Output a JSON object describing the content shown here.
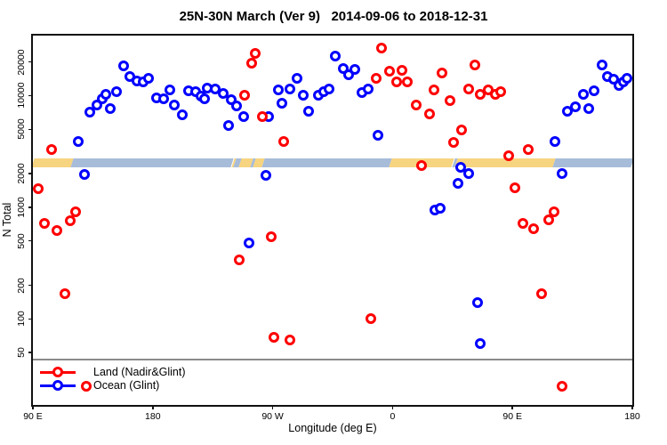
{
  "chart_data": {
    "type": "scatter",
    "title": "25N-30N March (Ver 9)   2014-09-06 to 2018-12-31",
    "xlabel": "Longitude (deg E)",
    "ylabel": "N Total",
    "grid": false,
    "legend_position": "bottom-left",
    "x_axis": {
      "note": "longitude unwrapped eastward from 90E to 540 (=180)",
      "range": [
        90,
        540
      ],
      "ticks": [
        {
          "value": 90,
          "label": "90 E"
        },
        {
          "value": 180,
          "label": "180"
        },
        {
          "value": 270,
          "label": "90 W"
        },
        {
          "value": 360,
          "label": "0"
        },
        {
          "value": 450,
          "label": "90 E"
        },
        {
          "value": 540,
          "label": "180"
        }
      ]
    },
    "y_axis": {
      "scale": "log",
      "range": [
        17,
        34500
      ],
      "ticks": [
        50,
        100,
        200,
        500,
        1000,
        2000,
        5000,
        10000,
        20000
      ]
    },
    "legend": [
      {
        "label": "Land (Nadir&Glint)",
        "color": "#ff0000"
      },
      {
        "label": "Ocean (Glint)",
        "color": "#0000ff"
      }
    ],
    "series": [
      {
        "name": "Land (Nadir&Glint)",
        "color": "#ff0000",
        "points": [
          [
            104,
            3300
          ],
          [
            94,
            1480
          ],
          [
            99,
            720
          ],
          [
            108,
            620
          ],
          [
            118,
            760
          ],
          [
            122,
            910
          ],
          [
            114,
            170
          ],
          [
            130,
            25
          ],
          [
            257,
            24000
          ],
          [
            254,
            19500
          ],
          [
            249,
            10000
          ],
          [
            262,
            6500
          ],
          [
            278,
            3900
          ],
          [
            245,
            340
          ],
          [
            269,
            550
          ],
          [
            271,
            68
          ],
          [
            283,
            65
          ],
          [
            344,
            100
          ],
          [
            352,
            26500
          ],
          [
            348,
            14400
          ],
          [
            358,
            16600
          ],
          [
            363,
            13400
          ],
          [
            367,
            16800
          ],
          [
            371,
            13400
          ],
          [
            378,
            8300
          ],
          [
            388,
            6900
          ],
          [
            382,
            2370
          ],
          [
            391,
            11300
          ],
          [
            397,
            16000
          ],
          [
            403,
            9100
          ],
          [
            406,
            3800
          ],
          [
            412,
            4900
          ],
          [
            417,
            11500
          ],
          [
            422,
            19000
          ],
          [
            426,
            10300
          ],
          [
            432,
            11300
          ],
          [
            437,
            10200
          ],
          [
            441,
            10800
          ],
          [
            447,
            2900
          ],
          [
            452,
            1500
          ],
          [
            458,
            720
          ],
          [
            462,
            3300
          ],
          [
            466,
            640
          ],
          [
            472,
            170
          ],
          [
            477,
            780
          ],
          [
            481,
            910
          ],
          [
            487,
            25
          ]
        ]
      },
      {
        "name": "Ocean (Glint)",
        "color": "#0000ff",
        "points": [
          [
            124,
            3900
          ],
          [
            129,
            1970
          ],
          [
            133,
            7100
          ],
          [
            138,
            8300
          ],
          [
            142,
            9400
          ],
          [
            145,
            10200
          ],
          [
            148,
            7700
          ],
          [
            153,
            10900
          ],
          [
            158,
            18400
          ],
          [
            163,
            14700
          ],
          [
            168,
            13500
          ],
          [
            173,
            13200
          ],
          [
            177,
            14400
          ],
          [
            183,
            9600
          ],
          [
            188,
            9300
          ],
          [
            193,
            11300
          ],
          [
            196,
            8300
          ],
          [
            202,
            6700
          ],
          [
            207,
            11100
          ],
          [
            212,
            10800
          ],
          [
            216,
            9900
          ],
          [
            219,
            9400
          ],
          [
            221,
            11600
          ],
          [
            227,
            11400
          ],
          [
            233,
            10400
          ],
          [
            239,
            9200
          ],
          [
            243,
            8100
          ],
          [
            237,
            5400
          ],
          [
            248,
            6500
          ],
          [
            252,
            480
          ],
          [
            265,
            1930
          ],
          [
            267,
            6500
          ],
          [
            274,
            11300
          ],
          [
            277,
            8600
          ],
          [
            283,
            11500
          ],
          [
            288,
            14200
          ],
          [
            293,
            10000
          ],
          [
            297,
            7300
          ],
          [
            304,
            10100
          ],
          [
            308,
            10800
          ],
          [
            312,
            11500
          ],
          [
            317,
            22500
          ],
          [
            323,
            17600
          ],
          [
            327,
            15300
          ],
          [
            332,
            17300
          ],
          [
            337,
            10600
          ],
          [
            342,
            11500
          ],
          [
            349,
            4400
          ],
          [
            392,
            950
          ],
          [
            396,
            980
          ],
          [
            409,
            1640
          ],
          [
            411,
            2280
          ],
          [
            417,
            2010
          ],
          [
            424,
            140
          ],
          [
            426,
            60
          ],
          [
            482,
            3900
          ],
          [
            487,
            2000
          ],
          [
            491,
            7200
          ],
          [
            497,
            8000
          ],
          [
            503,
            10300
          ],
          [
            507,
            7700
          ],
          [
            511,
            11000
          ],
          [
            517,
            18700
          ],
          [
            521,
            14700
          ],
          [
            526,
            14000
          ],
          [
            530,
            12400
          ],
          [
            533,
            13400
          ],
          [
            536,
            14200
          ]
        ]
      }
    ],
    "surface_band": {
      "description": "land/ocean surface-type strip along longitude",
      "y_range": [
        2280,
        2740
      ],
      "land_color": "#f7d480",
      "ocean_color": "#a7bcd9",
      "segments": [
        [
          90,
          119.5,
          "land"
        ],
        [
          119.5,
          240,
          "ocean"
        ],
        [
          240,
          241.5,
          "land"
        ],
        [
          241.5,
          245.5,
          "ocean"
        ],
        [
          245.5,
          254,
          "land"
        ],
        [
          254,
          256,
          "ocean"
        ],
        [
          256,
          263,
          "land"
        ],
        [
          263,
          358.5,
          "ocean"
        ],
        [
          358.5,
          405.5,
          "land"
        ],
        [
          405.5,
          407.5,
          "ocean"
        ],
        [
          407.5,
          481,
          "land"
        ],
        [
          481,
          540,
          "ocean"
        ]
      ]
    },
    "threshold_line": {
      "value": 43,
      "color": "#8a8a8a"
    }
  }
}
